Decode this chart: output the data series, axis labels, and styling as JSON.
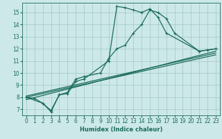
{
  "xlabel": "Humidex (Indice chaleur)",
  "background_color": "#cce8e8",
  "grid_color": "#aacccc",
  "line_color": "#1a6b5a",
  "xlim": [
    -0.5,
    23.5
  ],
  "ylim": [
    6.5,
    15.8
  ],
  "yticks": [
    7,
    8,
    9,
    10,
    11,
    12,
    13,
    14,
    15
  ],
  "xticks": [
    0,
    1,
    2,
    3,
    4,
    5,
    6,
    7,
    8,
    9,
    10,
    11,
    12,
    13,
    14,
    15,
    16,
    17,
    18,
    19,
    20,
    21,
    22,
    23
  ],
  "series": [
    {
      "x": [
        0,
        2,
        3,
        4,
        5,
        6,
        7,
        9,
        10,
        11,
        12,
        13,
        14,
        15,
        16,
        17,
        18,
        21,
        22,
        23
      ],
      "y": [
        8.0,
        7.5,
        6.8,
        8.2,
        8.4,
        9.5,
        9.7,
        10.0,
        11.2,
        12.0,
        12.3,
        13.3,
        14.0,
        15.2,
        15.0,
        14.5,
        13.3,
        11.8,
        11.9,
        12.0
      ],
      "marker": true
    },
    {
      "x": [
        0,
        1,
        2,
        3,
        4,
        5,
        6,
        7,
        10,
        11,
        12,
        13,
        14,
        15,
        16,
        17,
        21,
        22,
        23
      ],
      "y": [
        8.0,
        7.9,
        7.5,
        6.9,
        8.2,
        8.3,
        9.3,
        9.5,
        11.0,
        15.5,
        15.4,
        15.2,
        15.0,
        15.3,
        14.6,
        13.3,
        11.8,
        11.9,
        12.0
      ],
      "marker": true
    },
    {
      "x": [
        0,
        23
      ],
      "y": [
        7.8,
        11.8
      ],
      "marker": false
    },
    {
      "x": [
        0,
        23
      ],
      "y": [
        8.0,
        11.5
      ],
      "marker": false
    },
    {
      "x": [
        0,
        23
      ],
      "y": [
        8.1,
        11.65
      ],
      "marker": false
    }
  ]
}
